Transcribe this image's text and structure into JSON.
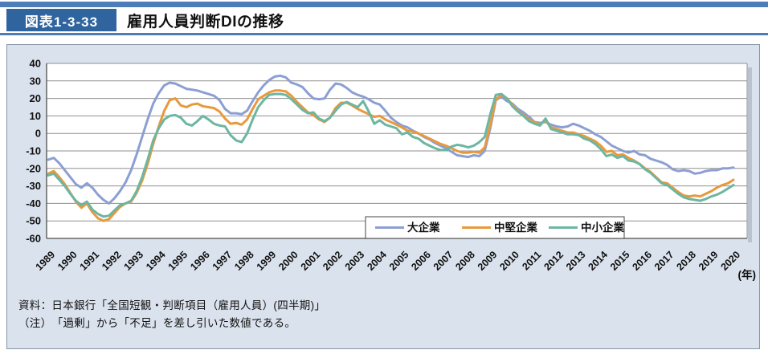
{
  "header": {
    "figure_label": "図表1-3-33",
    "title": "雇用人員判断DIの推移"
  },
  "footer": {
    "source": "資料：日本銀行「全国短観・判断項目（雇用人員）(四半期)」",
    "note": "（注）　「過剰」から「不足」を差し引いた数値である。"
  },
  "colors": {
    "accent_bar": "#4d7db8",
    "figure_badge_bg": "#2f649e",
    "panel_bg": "#dae2ed",
    "panel_border": "#8795a8",
    "plot_bg": "#ffffff",
    "gridline": "#8f8f8f",
    "axis": "#4d4d4d",
    "shadow": "#b9c3d0",
    "series_large": "#8c9fd2",
    "series_medium": "#e8993b",
    "series_small": "#6cb6a2"
  },
  "chart_data": {
    "type": "line",
    "title": "雇用人員判断DIの推移",
    "xlabel": "(年)",
    "ylabel": "",
    "ylim": [
      -60,
      40
    ],
    "y_ticks": [
      40,
      30,
      20,
      10,
      0,
      -10,
      -20,
      -30,
      -40,
      -50,
      -60
    ],
    "grid": true,
    "legend_position": "bottom-inside",
    "x_frequency": "quarterly",
    "points_per_year": 4,
    "x_tick_labels": [
      "1989",
      "1990",
      "1991",
      "1992",
      "1993",
      "1994",
      "1995",
      "1996",
      "1997",
      "1998",
      "1999",
      "2000",
      "2001",
      "2002",
      "2003",
      "2004",
      "2005",
      "2006",
      "2007",
      "2008",
      "2009",
      "2010",
      "2011",
      "2012",
      "2013",
      "2014",
      "2015",
      "2016",
      "2017",
      "2018",
      "2019",
      "2020"
    ],
    "x_axis_unit_label": "(年)",
    "series": [
      {
        "name": "大企業",
        "color": "#8c9fd2",
        "values": [
          -15,
          -14,
          -17,
          -21,
          -25,
          -29,
          -31,
          -28.5,
          -31,
          -35,
          -38,
          -40,
          -37,
          -33,
          -28,
          -21,
          -12,
          -2,
          8,
          17,
          23,
          27.5,
          29,
          28.5,
          27,
          25.5,
          25,
          24.5,
          23.5,
          22.5,
          21.5,
          19,
          14,
          11.5,
          11.5,
          11,
          13,
          18.5,
          23.5,
          27.5,
          30.5,
          32.5,
          33,
          32,
          29,
          28,
          26.5,
          23,
          20,
          19.5,
          20,
          25,
          28.5,
          28,
          26,
          23.5,
          22,
          21,
          19.5,
          17.5,
          16.5,
          13,
          9,
          6.5,
          4.5,
          3.5,
          1.5,
          0,
          -2,
          -3.5,
          -5.5,
          -7,
          -8.5,
          -10.5,
          -12.5,
          -13,
          -13.5,
          -12.5,
          -13,
          -10,
          3,
          19,
          21,
          18.5,
          17,
          14,
          12,
          9.5,
          6.5,
          6,
          6.5,
          5,
          4,
          3.5,
          4,
          5.5,
          4.5,
          3,
          1.5,
          -0.5,
          -2,
          -4.5,
          -7,
          -8.5,
          -10,
          -11,
          -10,
          -12,
          -12.5,
          -14.5,
          -15.5,
          -16.5,
          -18,
          -20.5,
          -21.5,
          -21,
          -21.5,
          -23,
          -22.5,
          -21.5,
          -21,
          -21,
          -20,
          -20,
          -19.5
        ]
      },
      {
        "name": "中堅企業",
        "color": "#e8993b",
        "values": [
          -23,
          -21.5,
          -25,
          -29,
          -34,
          -39,
          -42.5,
          -40,
          -45,
          -48.5,
          -50,
          -49,
          -45.5,
          -42,
          -40,
          -39,
          -34,
          -27,
          -17.5,
          -6,
          4,
          13,
          19,
          20,
          16,
          15,
          16.5,
          17,
          15.5,
          15,
          14.5,
          12.5,
          8.5,
          5.5,
          6,
          5,
          8,
          14,
          19.5,
          21.5,
          23.5,
          24.5,
          24.5,
          24,
          21.5,
          18,
          15,
          12,
          10.5,
          8,
          6.5,
          9,
          14.5,
          17.5,
          17.5,
          16,
          14,
          12.5,
          11,
          9.5,
          10,
          8,
          6.5,
          5,
          3.5,
          1.5,
          1,
          0,
          -1.5,
          -3,
          -4.5,
          -6,
          -7,
          -8.5,
          -10,
          -11,
          -11,
          -10.5,
          -11,
          -8,
          5,
          19.5,
          22,
          20,
          16.5,
          13,
          10.5,
          8,
          6.5,
          5,
          7.5,
          3.5,
          2.5,
          1.5,
          0.5,
          0.5,
          -0.5,
          -1.5,
          -3,
          -4.5,
          -7,
          -10.5,
          -10,
          -12.5,
          -12,
          -14,
          -15.5,
          -17.5,
          -20,
          -22,
          -25,
          -28,
          -28.5,
          -31,
          -33.5,
          -35.5,
          -36,
          -35.5,
          -36,
          -34.5,
          -33,
          -31,
          -29.5,
          -28.5,
          -26.5
        ]
      },
      {
        "name": "中小企業",
        "color": "#6cb6a2",
        "values": [
          -24,
          -23,
          -26.5,
          -30,
          -34.5,
          -38.5,
          -41,
          -39,
          -43.5,
          -46,
          -47.5,
          -47,
          -44,
          -41,
          -40,
          -38.5,
          -33,
          -25,
          -15,
          -4,
          3,
          8,
          10,
          10.5,
          9,
          5.5,
          4.5,
          7,
          10,
          8,
          5.5,
          4.5,
          4,
          -1,
          -4,
          -5,
          0,
          8,
          15,
          19,
          22,
          22.5,
          22.5,
          22,
          19.5,
          16.5,
          13.5,
          11.5,
          12,
          8.5,
          7,
          9,
          13,
          16.5,
          18,
          16.5,
          15,
          18.5,
          12.5,
          5.5,
          7.5,
          5,
          4,
          3,
          -0.5,
          0.5,
          -2,
          -3,
          -5.5,
          -7,
          -8.5,
          -9.5,
          -9.5,
          -7.5,
          -6.5,
          -7,
          -8,
          -7,
          -5,
          -2,
          11,
          22,
          22.5,
          20,
          15.5,
          12.5,
          10,
          7,
          5.5,
          4.5,
          8.5,
          2.5,
          1.5,
          0.5,
          -0.5,
          -0.5,
          -1,
          -3,
          -4,
          -6,
          -9,
          -13,
          -12,
          -14,
          -13,
          -15.5,
          -16,
          -17.5,
          -20.5,
          -22.5,
          -25.5,
          -28.5,
          -29.5,
          -32,
          -34.5,
          -36.5,
          -37.5,
          -38,
          -38.5,
          -37.5,
          -36,
          -35,
          -33.5,
          -31.5,
          -29.5
        ]
      }
    ]
  }
}
